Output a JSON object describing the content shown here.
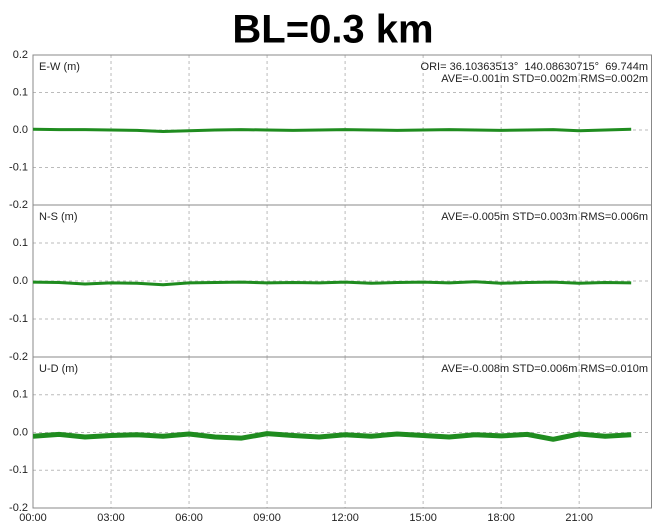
{
  "chart_data": [
    {
      "type": "line",
      "title": "BL=0.3 km",
      "y_label": "E-W (m)",
      "annotations": [
        "ORI= 36.10363513°  140.08630715°  69.744m",
        "AVE=-0.001m STD=0.002m RMS=0.002m"
      ],
      "x": [
        0,
        1,
        2,
        3,
        4,
        5,
        6,
        7,
        8,
        9,
        10,
        11,
        12,
        13,
        14,
        15,
        16,
        17,
        18,
        19,
        20,
        21,
        22,
        23
      ],
      "series": [
        {
          "name": "E-W",
          "color": "#1f8c1f",
          "values": [
            0.002,
            0.001,
            0.001,
            0,
            -0.001,
            -0.004,
            -0.002,
            0,
            0.001,
            0,
            -0.001,
            0,
            0.001,
            0,
            -0.001,
            0,
            0.001,
            0,
            -0.001,
            0,
            0.001,
            -0.002,
            0,
            0.002
          ]
        }
      ],
      "xlim": [
        0,
        23.8
      ],
      "ylim": [
        -0.2,
        0.2
      ],
      "yticks": [
        0.2,
        0.1,
        {
          "value": 0,
          "label": "0.0"
        },
        -0.1,
        -0.2
      ],
      "grid": true
    },
    {
      "type": "line",
      "y_label": "N-S (m)",
      "annotations": [
        "AVE=-0.005m STD=0.003m RMS=0.006m"
      ],
      "x": [
        0,
        1,
        2,
        3,
        4,
        5,
        6,
        7,
        8,
        9,
        10,
        11,
        12,
        13,
        14,
        15,
        16,
        17,
        18,
        19,
        20,
        21,
        22,
        23
      ],
      "series": [
        {
          "name": "N-S",
          "color": "#1f8c1f",
          "values": [
            -0.003,
            -0.004,
            -0.008,
            -0.005,
            -0.006,
            -0.01,
            -0.005,
            -0.004,
            -0.003,
            -0.005,
            -0.004,
            -0.005,
            -0.003,
            -0.006,
            -0.004,
            -0.003,
            -0.005,
            -0.002,
            -0.006,
            -0.004,
            -0.003,
            -0.006,
            -0.004,
            -0.005
          ]
        }
      ],
      "xlim": [
        0,
        23.8
      ],
      "ylim": [
        -0.2,
        0.2
      ],
      "yticks": [
        0.1,
        {
          "value": 0,
          "label": "0.0"
        },
        -0.1,
        -0.2
      ],
      "grid": true
    },
    {
      "type": "line",
      "y_label": "U-D (m)",
      "annotations": [
        "AVE=-0.008m STD=0.006m RMS=0.010m"
      ],
      "x": [
        0,
        1,
        2,
        3,
        4,
        5,
        6,
        7,
        8,
        9,
        10,
        11,
        12,
        13,
        14,
        15,
        16,
        17,
        18,
        19,
        20,
        21,
        22,
        23
      ],
      "series": [
        {
          "name": "U-D",
          "color": "#1f8c1f",
          "values": [
            -0.01,
            -0.005,
            -0.012,
            -0.008,
            -0.006,
            -0.01,
            -0.004,
            -0.012,
            -0.015,
            -0.003,
            -0.008,
            -0.012,
            -0.006,
            -0.01,
            -0.004,
            -0.008,
            -0.012,
            -0.006,
            -0.009,
            -0.005,
            -0.018,
            -0.004,
            -0.01,
            -0.006
          ]
        }
      ],
      "xlim": [
        0,
        23.8
      ],
      "ylim": [
        -0.2,
        0.2
      ],
      "xticks": [
        {
          "value": 0,
          "label": "00:00"
        },
        {
          "value": 3,
          "label": "03:00"
        },
        {
          "value": 6,
          "label": "06:00"
        },
        {
          "value": 9,
          "label": "09:00"
        },
        {
          "value": 12,
          "label": "12:00"
        },
        {
          "value": 15,
          "label": "15:00"
        },
        {
          "value": 18,
          "label": "18:00"
        },
        {
          "value": 21,
          "label": "21:00"
        }
      ],
      "yticks": [
        0.1,
        {
          "value": 0,
          "label": "0.0"
        },
        -0.1,
        -0.2
      ],
      "grid": true
    }
  ]
}
